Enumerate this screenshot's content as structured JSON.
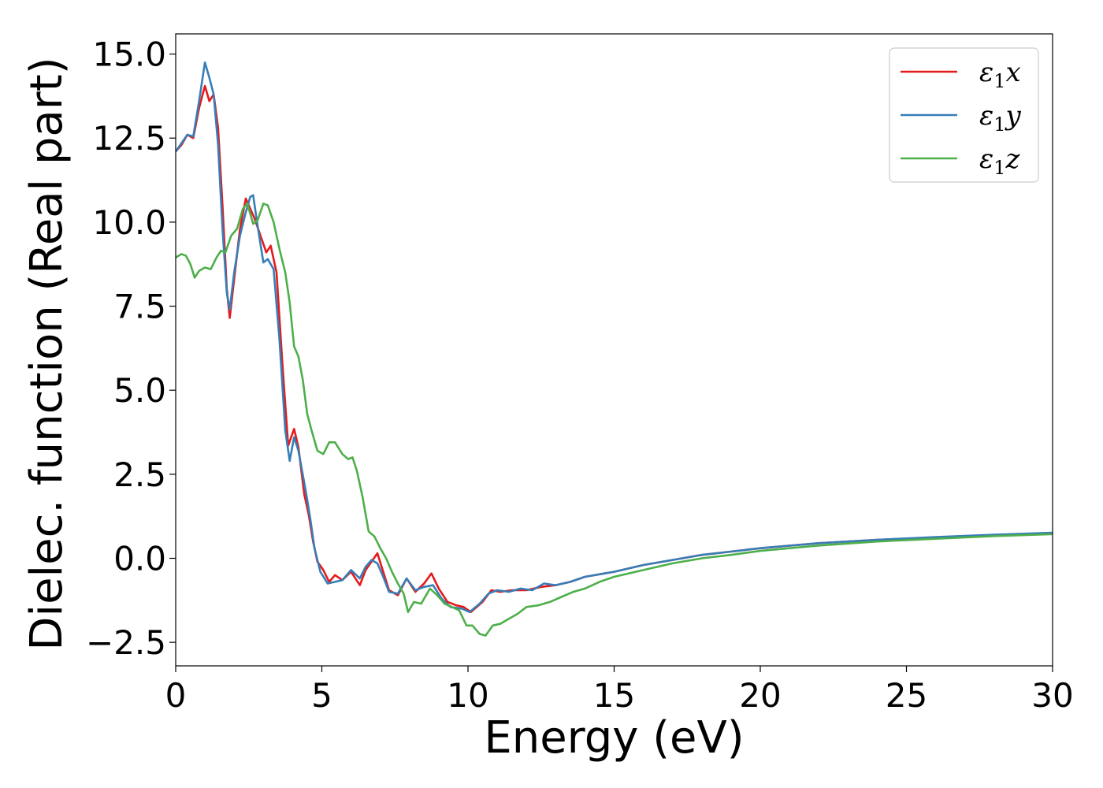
{
  "chart_data": {
    "type": "line",
    "xlabel": "Energy (eV)",
    "ylabel": "Dielec. function (Real part)",
    "xlim": [
      0,
      30
    ],
    "ylim": [
      -3.2,
      15.6
    ],
    "xticks": [
      0,
      5,
      10,
      15,
      20,
      25,
      30
    ],
    "xtick_labels": [
      "0",
      "5",
      "10",
      "15",
      "20",
      "25",
      "30"
    ],
    "yticks": [
      -2.5,
      0.0,
      2.5,
      5.0,
      7.5,
      10.0,
      12.5,
      15.0
    ],
    "ytick_labels": [
      "−2.5",
      "0.0",
      "2.5",
      "5.0",
      "7.5",
      "10.0",
      "12.5",
      "15.0"
    ],
    "grid": false,
    "legend_position": "top-right",
    "series": [
      {
        "name": "ε₁x",
        "legend": {
          "base": "ε",
          "sub": "1",
          "axis": "x"
        },
        "color": "#e41a1c",
        "points": [
          [
            0,
            12.1
          ],
          [
            0.2,
            12.3
          ],
          [
            0.4,
            12.6
          ],
          [
            0.6,
            12.5
          ],
          [
            0.8,
            13.4
          ],
          [
            1.0,
            14.05
          ],
          [
            1.15,
            13.6
          ],
          [
            1.3,
            13.8
          ],
          [
            1.45,
            12.8
          ],
          [
            1.6,
            10.5
          ],
          [
            1.75,
            8.0
          ],
          [
            1.85,
            7.15
          ],
          [
            2.0,
            8.3
          ],
          [
            2.2,
            9.8
          ],
          [
            2.4,
            10.7
          ],
          [
            2.55,
            10.4
          ],
          [
            2.7,
            10.1
          ],
          [
            2.9,
            9.6
          ],
          [
            3.1,
            9.1
          ],
          [
            3.25,
            9.3
          ],
          [
            3.45,
            8.5
          ],
          [
            3.65,
            5.8
          ],
          [
            3.85,
            3.35
          ],
          [
            4.05,
            3.85
          ],
          [
            4.2,
            3.3
          ],
          [
            4.4,
            1.9
          ],
          [
            4.55,
            1.3
          ],
          [
            4.7,
            0.5
          ],
          [
            4.85,
            -0.1
          ],
          [
            5.05,
            -0.35
          ],
          [
            5.25,
            -0.7
          ],
          [
            5.45,
            -0.5
          ],
          [
            5.7,
            -0.65
          ],
          [
            6.0,
            -0.4
          ],
          [
            6.3,
            -0.8
          ],
          [
            6.5,
            -0.35
          ],
          [
            6.7,
            -0.1
          ],
          [
            6.9,
            0.15
          ],
          [
            7.1,
            -0.4
          ],
          [
            7.3,
            -0.95
          ],
          [
            7.6,
            -1.1
          ],
          [
            7.9,
            -0.6
          ],
          [
            8.2,
            -1.0
          ],
          [
            8.5,
            -0.75
          ],
          [
            8.75,
            -0.45
          ],
          [
            9.0,
            -0.9
          ],
          [
            9.3,
            -1.3
          ],
          [
            9.6,
            -1.4
          ],
          [
            9.85,
            -1.45
          ],
          [
            10.1,
            -1.6
          ],
          [
            10.5,
            -1.3
          ],
          [
            10.8,
            -0.95
          ],
          [
            11.1,
            -1.0
          ],
          [
            11.5,
            -0.95
          ],
          [
            12.0,
            -0.95
          ],
          [
            12.5,
            -0.85
          ],
          [
            13.0,
            -0.8
          ],
          [
            13.5,
            -0.7
          ],
          [
            14.0,
            -0.55
          ],
          [
            15.0,
            -0.4
          ],
          [
            16.0,
            -0.2
          ],
          [
            17.0,
            -0.05
          ],
          [
            18.0,
            0.1
          ],
          [
            19.0,
            0.2
          ],
          [
            20.0,
            0.3
          ],
          [
            22.0,
            0.45
          ],
          [
            24.0,
            0.55
          ],
          [
            26.0,
            0.62
          ],
          [
            28.0,
            0.68
          ],
          [
            30.0,
            0.74
          ]
        ]
      },
      {
        "name": "ε₁y",
        "legend": {
          "base": "ε",
          "sub": "1",
          "axis": "y"
        },
        "color": "#377eb8",
        "points": [
          [
            0,
            12.1
          ],
          [
            0.2,
            12.35
          ],
          [
            0.4,
            12.6
          ],
          [
            0.6,
            12.55
          ],
          [
            0.8,
            13.6
          ],
          [
            1.0,
            14.75
          ],
          [
            1.15,
            14.3
          ],
          [
            1.3,
            13.8
          ],
          [
            1.45,
            12.3
          ],
          [
            1.6,
            9.8
          ],
          [
            1.75,
            7.9
          ],
          [
            1.85,
            7.4
          ],
          [
            2.0,
            8.5
          ],
          [
            2.2,
            9.6
          ],
          [
            2.4,
            10.3
          ],
          [
            2.55,
            10.75
          ],
          [
            2.65,
            10.8
          ],
          [
            2.8,
            9.9
          ],
          [
            3.0,
            8.8
          ],
          [
            3.15,
            8.9
          ],
          [
            3.35,
            8.6
          ],
          [
            3.55,
            6.5
          ],
          [
            3.75,
            3.8
          ],
          [
            3.9,
            2.9
          ],
          [
            4.05,
            3.6
          ],
          [
            4.2,
            3.2
          ],
          [
            4.45,
            2.0
          ],
          [
            4.6,
            1.2
          ],
          [
            4.75,
            0.3
          ],
          [
            4.95,
            -0.4
          ],
          [
            5.2,
            -0.75
          ],
          [
            5.45,
            -0.7
          ],
          [
            5.7,
            -0.65
          ],
          [
            6.0,
            -0.35
          ],
          [
            6.3,
            -0.6
          ],
          [
            6.5,
            -0.25
          ],
          [
            6.7,
            -0.05
          ],
          [
            6.9,
            -0.15
          ],
          [
            7.1,
            -0.55
          ],
          [
            7.3,
            -1.0
          ],
          [
            7.6,
            -1.05
          ],
          [
            7.9,
            -0.6
          ],
          [
            8.2,
            -0.95
          ],
          [
            8.5,
            -0.85
          ],
          [
            8.8,
            -0.8
          ],
          [
            9.1,
            -1.2
          ],
          [
            9.4,
            -1.45
          ],
          [
            9.8,
            -1.5
          ],
          [
            10.05,
            -1.6
          ],
          [
            10.4,
            -1.35
          ],
          [
            10.7,
            -1.05
          ],
          [
            11.0,
            -0.95
          ],
          [
            11.4,
            -1.0
          ],
          [
            11.8,
            -0.9
          ],
          [
            12.2,
            -0.95
          ],
          [
            12.6,
            -0.75
          ],
          [
            13.0,
            -0.8
          ],
          [
            13.5,
            -0.7
          ],
          [
            14.0,
            -0.55
          ],
          [
            15.0,
            -0.4
          ],
          [
            16.0,
            -0.2
          ],
          [
            17.0,
            -0.05
          ],
          [
            18.0,
            0.1
          ],
          [
            19.0,
            0.2
          ],
          [
            20.0,
            0.3
          ],
          [
            22.0,
            0.45
          ],
          [
            24.0,
            0.55
          ],
          [
            26.0,
            0.63
          ],
          [
            28.0,
            0.7
          ],
          [
            30.0,
            0.76
          ]
        ]
      },
      {
        "name": "ε₁z",
        "legend": {
          "base": "ε",
          "sub": "1",
          "axis": "z"
        },
        "color": "#4daf4a",
        "points": [
          [
            0,
            8.95
          ],
          [
            0.2,
            9.05
          ],
          [
            0.35,
            9.0
          ],
          [
            0.5,
            8.75
          ],
          [
            0.65,
            8.35
          ],
          [
            0.8,
            8.55
          ],
          [
            1.0,
            8.65
          ],
          [
            1.2,
            8.6
          ],
          [
            1.4,
            8.95
          ],
          [
            1.55,
            9.15
          ],
          [
            1.7,
            9.1
          ],
          [
            1.9,
            9.6
          ],
          [
            2.1,
            9.8
          ],
          [
            2.3,
            10.4
          ],
          [
            2.45,
            10.55
          ],
          [
            2.65,
            9.95
          ],
          [
            2.8,
            10.05
          ],
          [
            3.0,
            10.55
          ],
          [
            3.15,
            10.5
          ],
          [
            3.35,
            10.0
          ],
          [
            3.55,
            9.2
          ],
          [
            3.75,
            8.5
          ],
          [
            3.9,
            7.6
          ],
          [
            4.05,
            6.3
          ],
          [
            4.2,
            6.0
          ],
          [
            4.35,
            5.3
          ],
          [
            4.5,
            4.3
          ],
          [
            4.65,
            3.8
          ],
          [
            4.85,
            3.2
          ],
          [
            5.05,
            3.1
          ],
          [
            5.25,
            3.45
          ],
          [
            5.45,
            3.45
          ],
          [
            5.7,
            3.1
          ],
          [
            5.9,
            2.95
          ],
          [
            6.05,
            3.0
          ],
          [
            6.2,
            2.6
          ],
          [
            6.4,
            1.8
          ],
          [
            6.6,
            0.8
          ],
          [
            6.8,
            0.65
          ],
          [
            7.0,
            0.3
          ],
          [
            7.2,
            0.0
          ],
          [
            7.4,
            -0.4
          ],
          [
            7.6,
            -0.75
          ],
          [
            7.8,
            -1.05
          ],
          [
            7.95,
            -1.6
          ],
          [
            8.15,
            -1.3
          ],
          [
            8.4,
            -1.35
          ],
          [
            8.7,
            -0.9
          ],
          [
            8.95,
            -1.1
          ],
          [
            9.2,
            -1.35
          ],
          [
            9.45,
            -1.45
          ],
          [
            9.7,
            -1.55
          ],
          [
            9.95,
            -2.0
          ],
          [
            10.15,
            -2.0
          ],
          [
            10.4,
            -2.25
          ],
          [
            10.6,
            -2.3
          ],
          [
            10.85,
            -2.0
          ],
          [
            11.1,
            -1.95
          ],
          [
            11.4,
            -1.8
          ],
          [
            11.7,
            -1.65
          ],
          [
            12.0,
            -1.45
          ],
          [
            12.4,
            -1.4
          ],
          [
            12.8,
            -1.3
          ],
          [
            13.2,
            -1.15
          ],
          [
            13.6,
            -1.0
          ],
          [
            14.0,
            -0.9
          ],
          [
            14.5,
            -0.7
          ],
          [
            15.0,
            -0.55
          ],
          [
            16.0,
            -0.35
          ],
          [
            17.0,
            -0.15
          ],
          [
            18.0,
            0.0
          ],
          [
            19.0,
            0.1
          ],
          [
            20.0,
            0.22
          ],
          [
            22.0,
            0.38
          ],
          [
            24.0,
            0.5
          ],
          [
            26.0,
            0.58
          ],
          [
            28.0,
            0.66
          ],
          [
            30.0,
            0.72
          ]
        ]
      }
    ]
  }
}
